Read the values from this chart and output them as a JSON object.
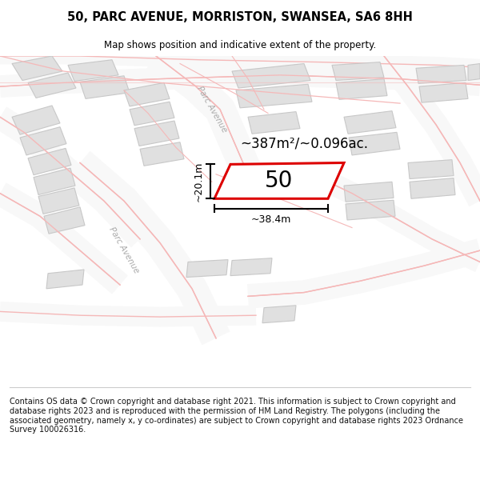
{
  "title": "50, PARC AVENUE, MORRISTON, SWANSEA, SA6 8HH",
  "subtitle": "Map shows position and indicative extent of the property.",
  "footer": "Contains OS data © Crown copyright and database right 2021. This information is subject to Crown copyright and database rights 2023 and is reproduced with the permission of HM Land Registry. The polygons (including the associated geometry, namely x, y co-ordinates) are subject to Crown copyright and database rights 2023 Ordnance Survey 100026316.",
  "bg_color": "#ffffff",
  "area_text": "~387m²/~0.096ac.",
  "width_text": "~38.4m",
  "height_text": "~20.1m",
  "number_text": "50",
  "road_color": "#f5b8b8",
  "building_color": "#e0e0e0",
  "highlight_color": "#dd0000",
  "road_label_color": "#b0b0b0",
  "map_bg_color": "#fafafa"
}
